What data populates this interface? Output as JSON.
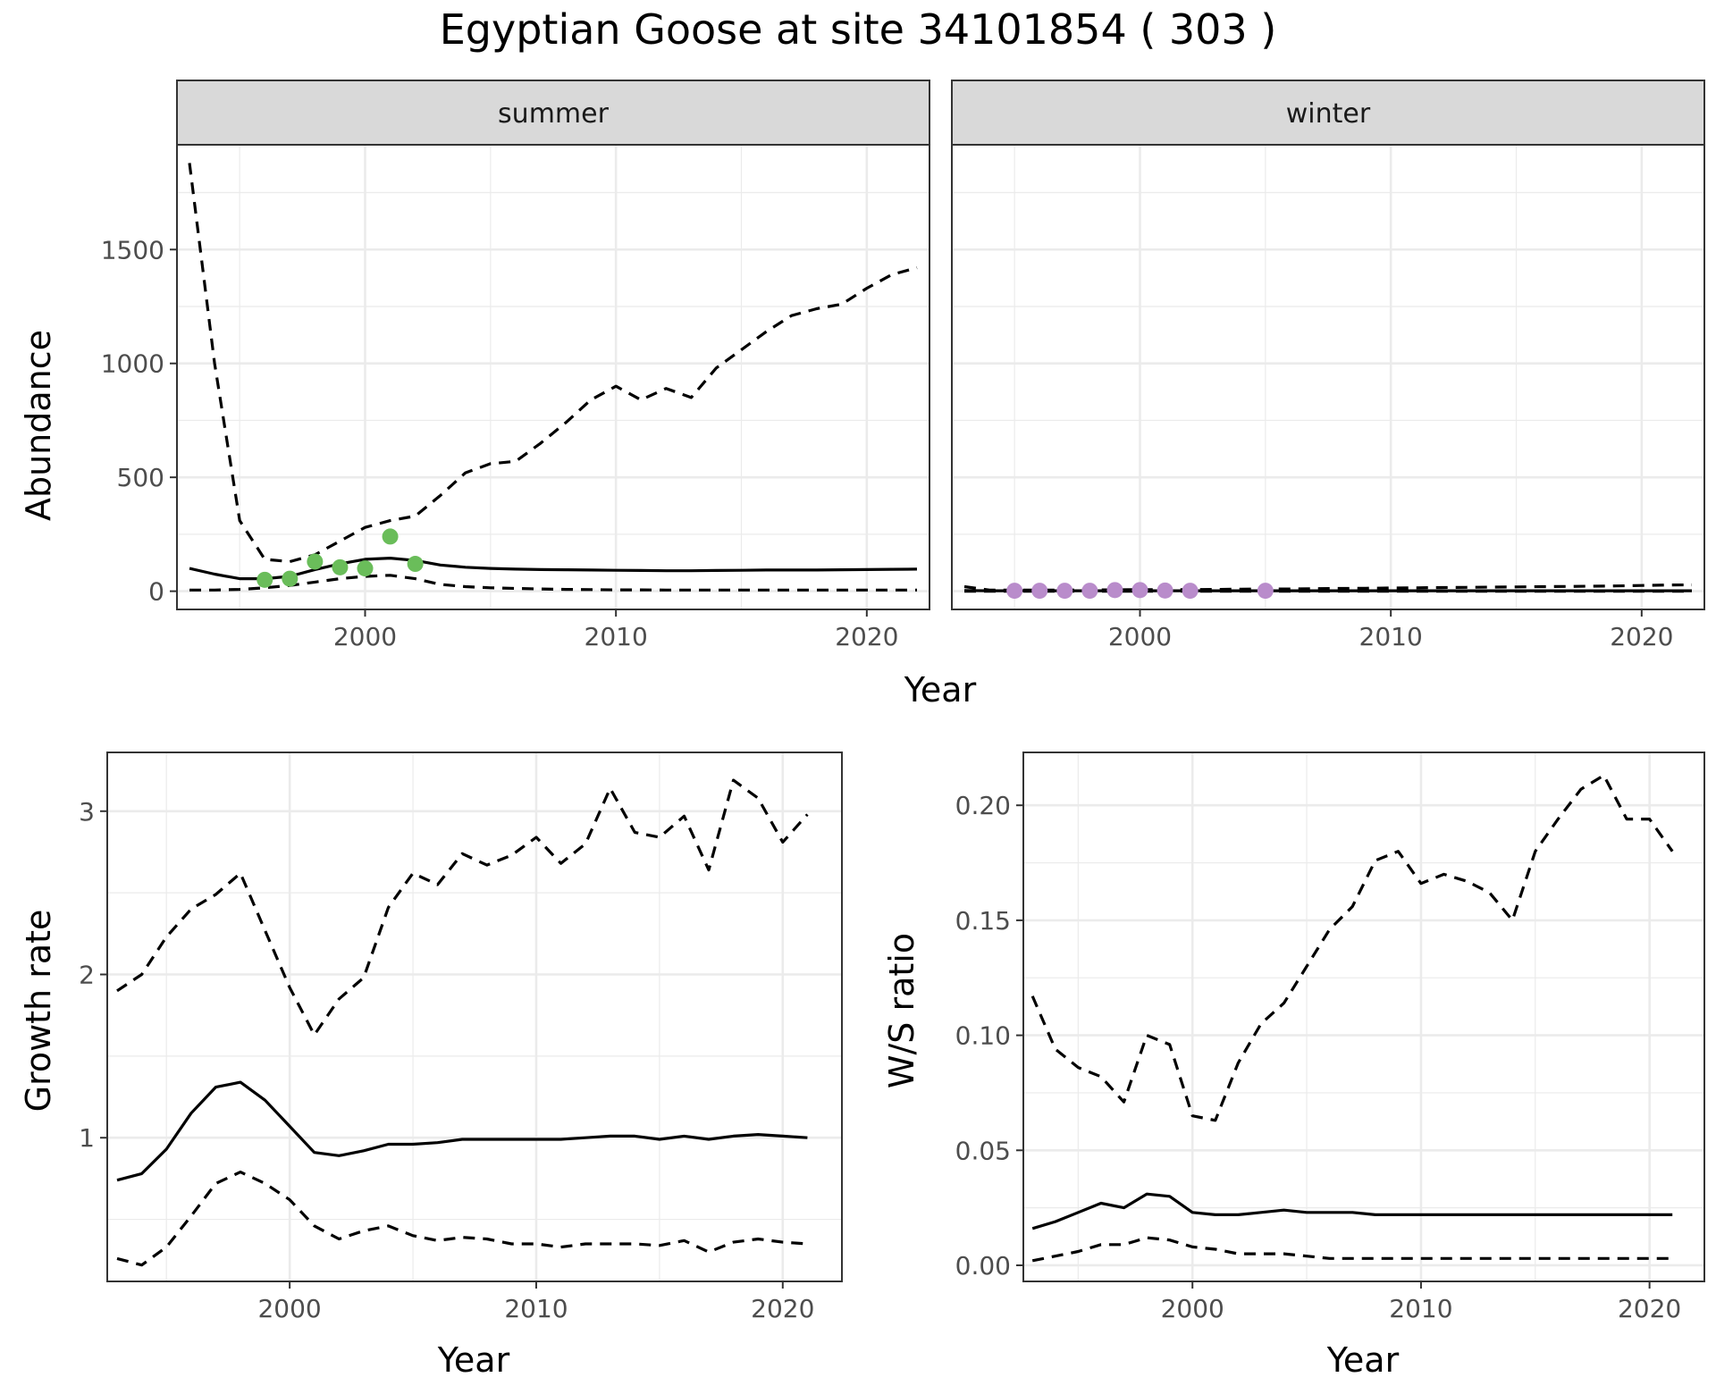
{
  "title": "Egyptian Goose at site 34101854 ( 303 )",
  "colors": {
    "summer_points": "#6abd5a",
    "winter_points": "#b98ccb",
    "lines": "#000000",
    "strip_fill": "#d9d9d9",
    "grid": "#ebebeb"
  },
  "chart_data": [
    {
      "type": "line",
      "facet": "summer",
      "xlabel": "Year",
      "ylabel": "Abundance",
      "xlim": [
        1992.5,
        2022.5
      ],
      "ylim": [
        -80,
        1960
      ],
      "xticks": [
        2000,
        2010,
        2020
      ],
      "yticks": [
        0,
        500,
        1000,
        1500
      ],
      "grid": true,
      "x": [
        1993,
        1994,
        1995,
        1996,
        1997,
        1998,
        1999,
        2000,
        2001,
        2002,
        2003,
        2004,
        2005,
        2006,
        2007,
        2008,
        2009,
        2010,
        2011,
        2012,
        2013,
        2014,
        2015,
        2016,
        2017,
        2018,
        2019,
        2020,
        2021,
        2022
      ],
      "series": [
        {
          "role": "estimate",
          "style": "solid",
          "values": [
            100,
            75,
            55,
            55,
            65,
            95,
            120,
            140,
            145,
            135,
            115,
            105,
            100,
            97,
            95,
            94,
            93,
            92,
            91,
            90,
            90,
            91,
            92,
            93,
            93,
            93,
            94,
            95,
            96,
            97
          ]
        },
        {
          "role": "upper",
          "style": "dashed",
          "values": [
            1880,
            1000,
            310,
            140,
            130,
            160,
            220,
            280,
            310,
            330,
            420,
            520,
            560,
            570,
            650,
            740,
            840,
            900,
            840,
            890,
            850,
            980,
            1060,
            1140,
            1210,
            1240,
            1260,
            1330,
            1390,
            1420
          ]
        },
        {
          "role": "lower",
          "style": "dashed",
          "values": [
            5,
            5,
            8,
            15,
            25,
            40,
            55,
            65,
            70,
            55,
            30,
            20,
            15,
            12,
            10,
            8,
            7,
            6,
            6,
            5,
            5,
            5,
            5,
            5,
            5,
            5,
            5,
            5,
            5,
            5
          ]
        }
      ],
      "points": {
        "x": [
          1996,
          1997,
          1998,
          1999,
          2000,
          2001,
          2002
        ],
        "y": [
          50,
          55,
          130,
          105,
          100,
          240,
          120
        ]
      }
    },
    {
      "type": "line",
      "facet": "winter",
      "xlabel": "Year",
      "xlim": [
        1992.5,
        2022.5
      ],
      "ylim": [
        -80,
        1960
      ],
      "xticks": [
        2000,
        2010,
        2020
      ],
      "grid": true,
      "x": [
        1993,
        1994,
        1995,
        1996,
        1997,
        1998,
        1999,
        2000,
        2001,
        2002,
        2003,
        2004,
        2005,
        2006,
        2007,
        2008,
        2009,
        2010,
        2011,
        2012,
        2013,
        2014,
        2015,
        2016,
        2017,
        2018,
        2019,
        2020,
        2021,
        2022
      ],
      "series": [
        {
          "role": "estimate",
          "style": "solid",
          "values": [
            3,
            2,
            2,
            2,
            2,
            2,
            2,
            2,
            2,
            2,
            2,
            2,
            2,
            2,
            2,
            2,
            2,
            2,
            2,
            2,
            2,
            2,
            2,
            2,
            2,
            2,
            2,
            2,
            2,
            2
          ]
        },
        {
          "role": "upper",
          "style": "dashed",
          "values": [
            20,
            5,
            5,
            5,
            5,
            6,
            6,
            7,
            7,
            7,
            8,
            9,
            10,
            10,
            11,
            12,
            13,
            14,
            15,
            16,
            17,
            18,
            19,
            20,
            21,
            22,
            23,
            25,
            27,
            28
          ]
        },
        {
          "role": "lower",
          "style": "dashed",
          "values": [
            0,
            0,
            0,
            0,
            0,
            0,
            0,
            0,
            0,
            0,
            0,
            0,
            0,
            0,
            0,
            0,
            0,
            0,
            0,
            0,
            0,
            0,
            0,
            0,
            0,
            0,
            0,
            0,
            0,
            0
          ]
        }
      ],
      "points": {
        "x": [
          1995,
          1996,
          1997,
          1998,
          1999,
          2000,
          2001,
          2002,
          2005
        ],
        "y": [
          2,
          2,
          2,
          2,
          5,
          5,
          3,
          2,
          2
        ]
      }
    },
    {
      "type": "line",
      "xlabel": "Year",
      "ylabel": "Growth rate",
      "xlim": [
        1992.6,
        2022.4
      ],
      "ylim": [
        0.12,
        3.36
      ],
      "xticks": [
        2000,
        2010,
        2020
      ],
      "yticks": [
        1,
        2,
        3
      ],
      "grid": true,
      "x": [
        1993,
        1994,
        1995,
        1996,
        1997,
        1998,
        1999,
        2000,
        2001,
        2002,
        2003,
        2004,
        2005,
        2006,
        2007,
        2008,
        2009,
        2010,
        2011,
        2012,
        2013,
        2014,
        2015,
        2016,
        2017,
        2018,
        2019,
        2020,
        2021
      ],
      "series": [
        {
          "role": "estimate",
          "style": "solid",
          "values": [
            0.74,
            0.78,
            0.93,
            1.15,
            1.31,
            1.34,
            1.23,
            1.07,
            0.91,
            0.89,
            0.92,
            0.96,
            0.96,
            0.97,
            0.99,
            0.99,
            0.99,
            0.99,
            0.99,
            1.0,
            1.01,
            1.01,
            0.99,
            1.01,
            0.99,
            1.01,
            1.02,
            1.01,
            1.0
          ]
        },
        {
          "role": "upper",
          "style": "dashed",
          "values": [
            1.9,
            2.0,
            2.23,
            2.4,
            2.49,
            2.62,
            2.27,
            1.92,
            1.63,
            1.85,
            1.98,
            2.41,
            2.62,
            2.55,
            2.74,
            2.67,
            2.73,
            2.84,
            2.68,
            2.8,
            3.14,
            2.87,
            2.84,
            2.97,
            2.64,
            3.19,
            3.08,
            2.81,
            2.98
          ]
        },
        {
          "role": "lower",
          "style": "dashed",
          "values": [
            0.26,
            0.22,
            0.33,
            0.52,
            0.72,
            0.79,
            0.72,
            0.62,
            0.46,
            0.38,
            0.43,
            0.46,
            0.4,
            0.37,
            0.39,
            0.38,
            0.35,
            0.35,
            0.33,
            0.35,
            0.35,
            0.35,
            0.34,
            0.37,
            0.3,
            0.36,
            0.38,
            0.36,
            0.35
          ]
        }
      ]
    },
    {
      "type": "line",
      "xlabel": "Year",
      "ylabel": "W/S ratio",
      "xlim": [
        1992.6,
        2022.4
      ],
      "ylim": [
        -0.007,
        0.223
      ],
      "xticks": [
        2000,
        2010,
        2020
      ],
      "yticks": [
        0.0,
        0.05,
        0.1,
        0.15,
        0.2
      ],
      "ytick_labels": [
        "0.00",
        "0.05",
        "0.10",
        "0.15",
        "0.20"
      ],
      "grid": true,
      "x": [
        1993,
        1994,
        1995,
        1996,
        1997,
        1998,
        1999,
        2000,
        2001,
        2002,
        2003,
        2004,
        2005,
        2006,
        2007,
        2008,
        2009,
        2010,
        2011,
        2012,
        2013,
        2014,
        2015,
        2016,
        2017,
        2018,
        2019,
        2020,
        2021
      ],
      "series": [
        {
          "role": "estimate",
          "style": "solid",
          "values": [
            0.016,
            0.019,
            0.023,
            0.027,
            0.025,
            0.031,
            0.03,
            0.023,
            0.022,
            0.022,
            0.023,
            0.024,
            0.023,
            0.023,
            0.023,
            0.022,
            0.022,
            0.022,
            0.022,
            0.022,
            0.022,
            0.022,
            0.022,
            0.022,
            0.022,
            0.022,
            0.022,
            0.022,
            0.022
          ]
        },
        {
          "role": "upper",
          "style": "dashed",
          "values": [
            0.117,
            0.094,
            0.086,
            0.082,
            0.071,
            0.1,
            0.096,
            0.065,
            0.063,
            0.088,
            0.105,
            0.114,
            0.13,
            0.146,
            0.156,
            0.176,
            0.18,
            0.166,
            0.17,
            0.167,
            0.162,
            0.15,
            0.18,
            0.194,
            0.207,
            0.213,
            0.194,
            0.194,
            0.18
          ]
        },
        {
          "role": "lower",
          "style": "dashed",
          "values": [
            0.002,
            0.004,
            0.006,
            0.009,
            0.009,
            0.012,
            0.011,
            0.008,
            0.007,
            0.005,
            0.005,
            0.005,
            0.004,
            0.003,
            0.003,
            0.003,
            0.003,
            0.003,
            0.003,
            0.003,
            0.003,
            0.003,
            0.003,
            0.003,
            0.003,
            0.003,
            0.003,
            0.003,
            0.003
          ]
        }
      ]
    }
  ],
  "labels": {
    "summer_strip": "summer",
    "winter_strip": "winter",
    "top_xlabel": "Year",
    "top_ylabel": "Abundance",
    "growth_xlabel": "Year",
    "growth_ylabel": "Growth rate",
    "ratio_xlabel": "Year",
    "ratio_ylabel": "W/S ratio"
  }
}
